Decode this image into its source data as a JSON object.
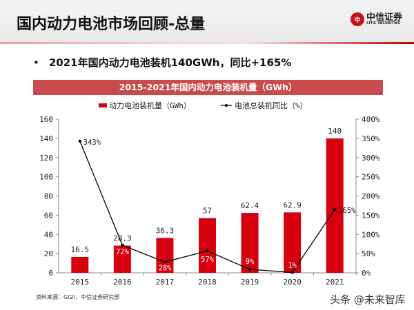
{
  "header": {
    "title": "国内动力电池市场回顾-总量",
    "logo_cn": "中信证券",
    "logo_en": "CITIC SECURITIES"
  },
  "bullet": "2021年国内动力电池装机140GWh，同比+165%",
  "source": "资料来源：GGII，中信证券研究部",
  "watermark": "头条 @未来智库",
  "chart_data": {
    "type": "bar+line",
    "title": "2015-2021年国内动力电池装机量（GWh）",
    "categories": [
      "2015",
      "2016",
      "2017",
      "2018",
      "2019",
      "2020",
      "2021"
    ],
    "series": [
      {
        "name": "动力电池装机量（GWh）",
        "type": "bar",
        "axis": "left",
        "color": "#d7000f",
        "values": [
          16.5,
          28.3,
          36.3,
          57,
          62.4,
          62.9,
          140
        ],
        "labels": [
          "16.5",
          "28.3",
          "36.3",
          "57",
          "62.4",
          "62.9",
          "140"
        ]
      },
      {
        "name": "电池总装机同比（%）",
        "type": "line",
        "axis": "right",
        "color": "#000000",
        "values": [
          343,
          72,
          28,
          57,
          9,
          1,
          165
        ],
        "labels": [
          "343%",
          "72%",
          "28%",
          "57%",
          "9%",
          "1%",
          "165%"
        ]
      }
    ],
    "y_left": {
      "range": [
        0,
        160
      ],
      "ticks": [
        "0",
        "20",
        "40",
        "60",
        "80",
        "100",
        "120",
        "140",
        "160"
      ]
    },
    "y_right": {
      "range": [
        0,
        400
      ],
      "ticks": [
        "0%",
        "50%",
        "100%",
        "150%",
        "200%",
        "250%",
        "300%",
        "350%",
        "400%"
      ]
    },
    "grid": false,
    "legend": "top"
  }
}
